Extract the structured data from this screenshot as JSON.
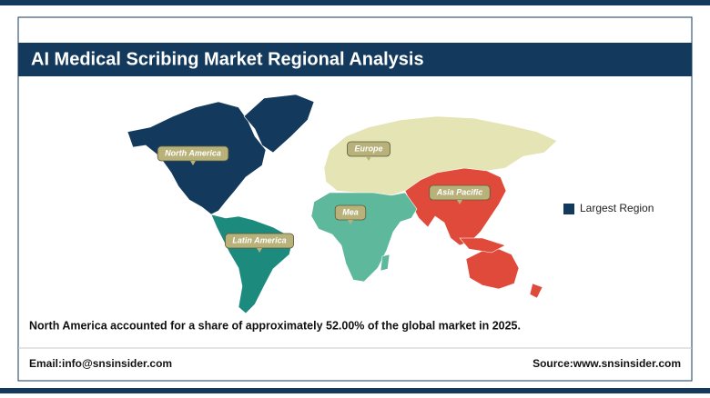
{
  "header": {
    "title": "AI Medical Scribing Market Regional Analysis"
  },
  "regions": [
    {
      "name": "North America",
      "color": "#13395c"
    },
    {
      "name": "Europe",
      "color": "#e4e4b4"
    },
    {
      "name": "Asia Pacific",
      "color": "#e04a3a"
    },
    {
      "name": "Mea",
      "color": "#5db89c"
    },
    {
      "name": "Latin America",
      "color": "#1c8a7d"
    }
  ],
  "legend": {
    "label": "Largest Region",
    "color": "#13395c"
  },
  "note": "North America accounted for a share of approximately 52.00% of the global market in 2025.",
  "footer": {
    "email": "Email:info@snsinsider.com",
    "source": "Source:www.snsinsider.com"
  }
}
